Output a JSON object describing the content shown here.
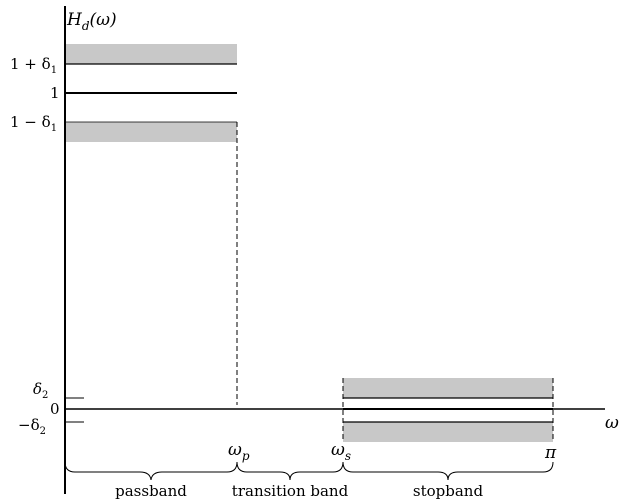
{
  "colors": {
    "band_fill": "#c8c8c8",
    "line": "#000000",
    "background": "#ffffff"
  },
  "y_axis_label": {
    "main": "H",
    "sub": "d",
    "rest": "(ω)"
  },
  "x_axis_label": "ω",
  "y_ticks": {
    "one_plus_delta1": {
      "prefix": "1 + δ",
      "sub": "1"
    },
    "one": "1",
    "one_minus_delta1": {
      "prefix": "1 − δ",
      "sub": "1"
    },
    "delta2": {
      "prefix": "δ",
      "sub": "2"
    },
    "zero": "0",
    "minus_delta2": {
      "prefix": "−δ",
      "sub": "2"
    }
  },
  "x_ticks": {
    "omega_p": {
      "main": "ω",
      "sub": "p"
    },
    "omega_s": {
      "main": "ω",
      "sub": "s"
    },
    "pi": "π"
  },
  "bands": {
    "passband": "passband",
    "transition": "transition band",
    "stopband": "stopband"
  }
}
